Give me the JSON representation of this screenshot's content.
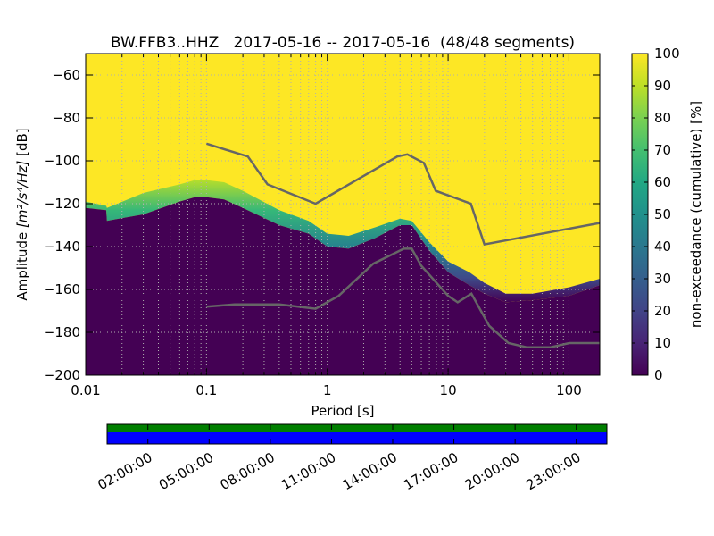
{
  "chart_data": {
    "type": "heatmap",
    "title": "BW.FFB3..HHZ   2017-05-16 -- 2017-05-16  (48/48 segments)",
    "xlabel": "Period [s]",
    "ylabel_prefix": "Amplitude ",
    "ylabel_units": "[m²/s⁴/Hz]",
    "ylabel_suffix": " [dB]",
    "xscale": "log",
    "xlim": [
      0.01,
      180
    ],
    "ylim": [
      -200,
      -50
    ],
    "x_tick_values": [
      0.01,
      0.1,
      1,
      10,
      100
    ],
    "x_tick_labels": [
      "0.01",
      "0.1",
      "1",
      "10",
      "100"
    ],
    "y_tick_values": [
      -60,
      -80,
      -100,
      -120,
      -140,
      -160,
      -180,
      -200
    ],
    "y_tick_labels": [
      "−60",
      "−80",
      "−100",
      "−120",
      "−140",
      "−160",
      "−180",
      "−200"
    ],
    "grid": true,
    "colorbar": {
      "label": "non-exceedance (cumulative) [%]",
      "tick_values": [
        0,
        10,
        20,
        30,
        40,
        50,
        60,
        70,
        80,
        90,
        100
      ],
      "tick_labels": [
        "0",
        "10",
        "20",
        "30",
        "40",
        "50",
        "60",
        "70",
        "80",
        "90",
        "100"
      ],
      "colormap": "viridis"
    },
    "psd_boundary": {
      "name": "distribution edge",
      "period": [
        0.01,
        0.0148,
        0.015,
        0.03,
        0.06,
        0.08,
        0.1,
        0.14,
        0.2,
        0.4,
        0.7,
        1.0,
        1.5,
        2.5,
        4.0,
        5.0,
        7.0,
        10.0,
        15.0,
        20.0,
        30.0,
        50.0,
        100.0,
        180.0
      ],
      "lower_db": [
        -122,
        -123,
        -128,
        -125,
        -119,
        -117,
        -117,
        -118,
        -122,
        -130,
        -134,
        -140,
        -141,
        -136,
        -130,
        -130,
        -142,
        -152,
        -158,
        -162,
        -166,
        -165,
        -163,
        -158
      ],
      "upper_db": [
        -119,
        -121,
        -122,
        -115,
        -111,
        -109,
        -109,
        -110,
        -114,
        -123,
        -128,
        -134,
        -135,
        -131,
        -127,
        -128,
        -138,
        -147,
        -152,
        -157,
        -162,
        -162,
        -159,
        -155
      ]
    },
    "series": [
      {
        "name": "upper noise model",
        "color": "#666666",
        "period": [
          0.1,
          0.22,
          0.32,
          0.8,
          3.8,
          4.6,
          6.3,
          7.9,
          15.4,
          20.0,
          180.0
        ],
        "db": [
          -92,
          -98,
          -111,
          -120,
          -98,
          -97,
          -101,
          -114,
          -120,
          -139,
          -129
        ]
      },
      {
        "name": "lower noise model",
        "color": "#666666",
        "period": [
          0.1,
          0.17,
          0.4,
          0.8,
          1.24,
          2.4,
          4.3,
          5.0,
          6.0,
          10.0,
          12.0,
          15.6,
          21.9,
          31.6,
          45.0,
          70.0,
          101.0,
          154.0,
          180.0
        ],
        "db": [
          -168,
          -167,
          -167,
          -169,
          -163,
          -148,
          -141,
          -141,
          -149,
          -163,
          -166,
          -162,
          -177,
          -185,
          -187,
          -187,
          -185,
          -185,
          -185
        ]
      }
    ],
    "timeline": {
      "tick_labels": [
        "02:00:00",
        "05:00:00",
        "08:00:00",
        "11:00:00",
        "14:00:00",
        "17:00:00",
        "20:00:00",
        "23:00:00"
      ],
      "tick_hours": [
        2,
        5,
        8,
        11,
        14,
        17,
        20,
        23
      ],
      "start_hour": 0,
      "end_hour": 24.5,
      "coverage_color": "#007f00",
      "psd_color": "#0000ff"
    }
  }
}
